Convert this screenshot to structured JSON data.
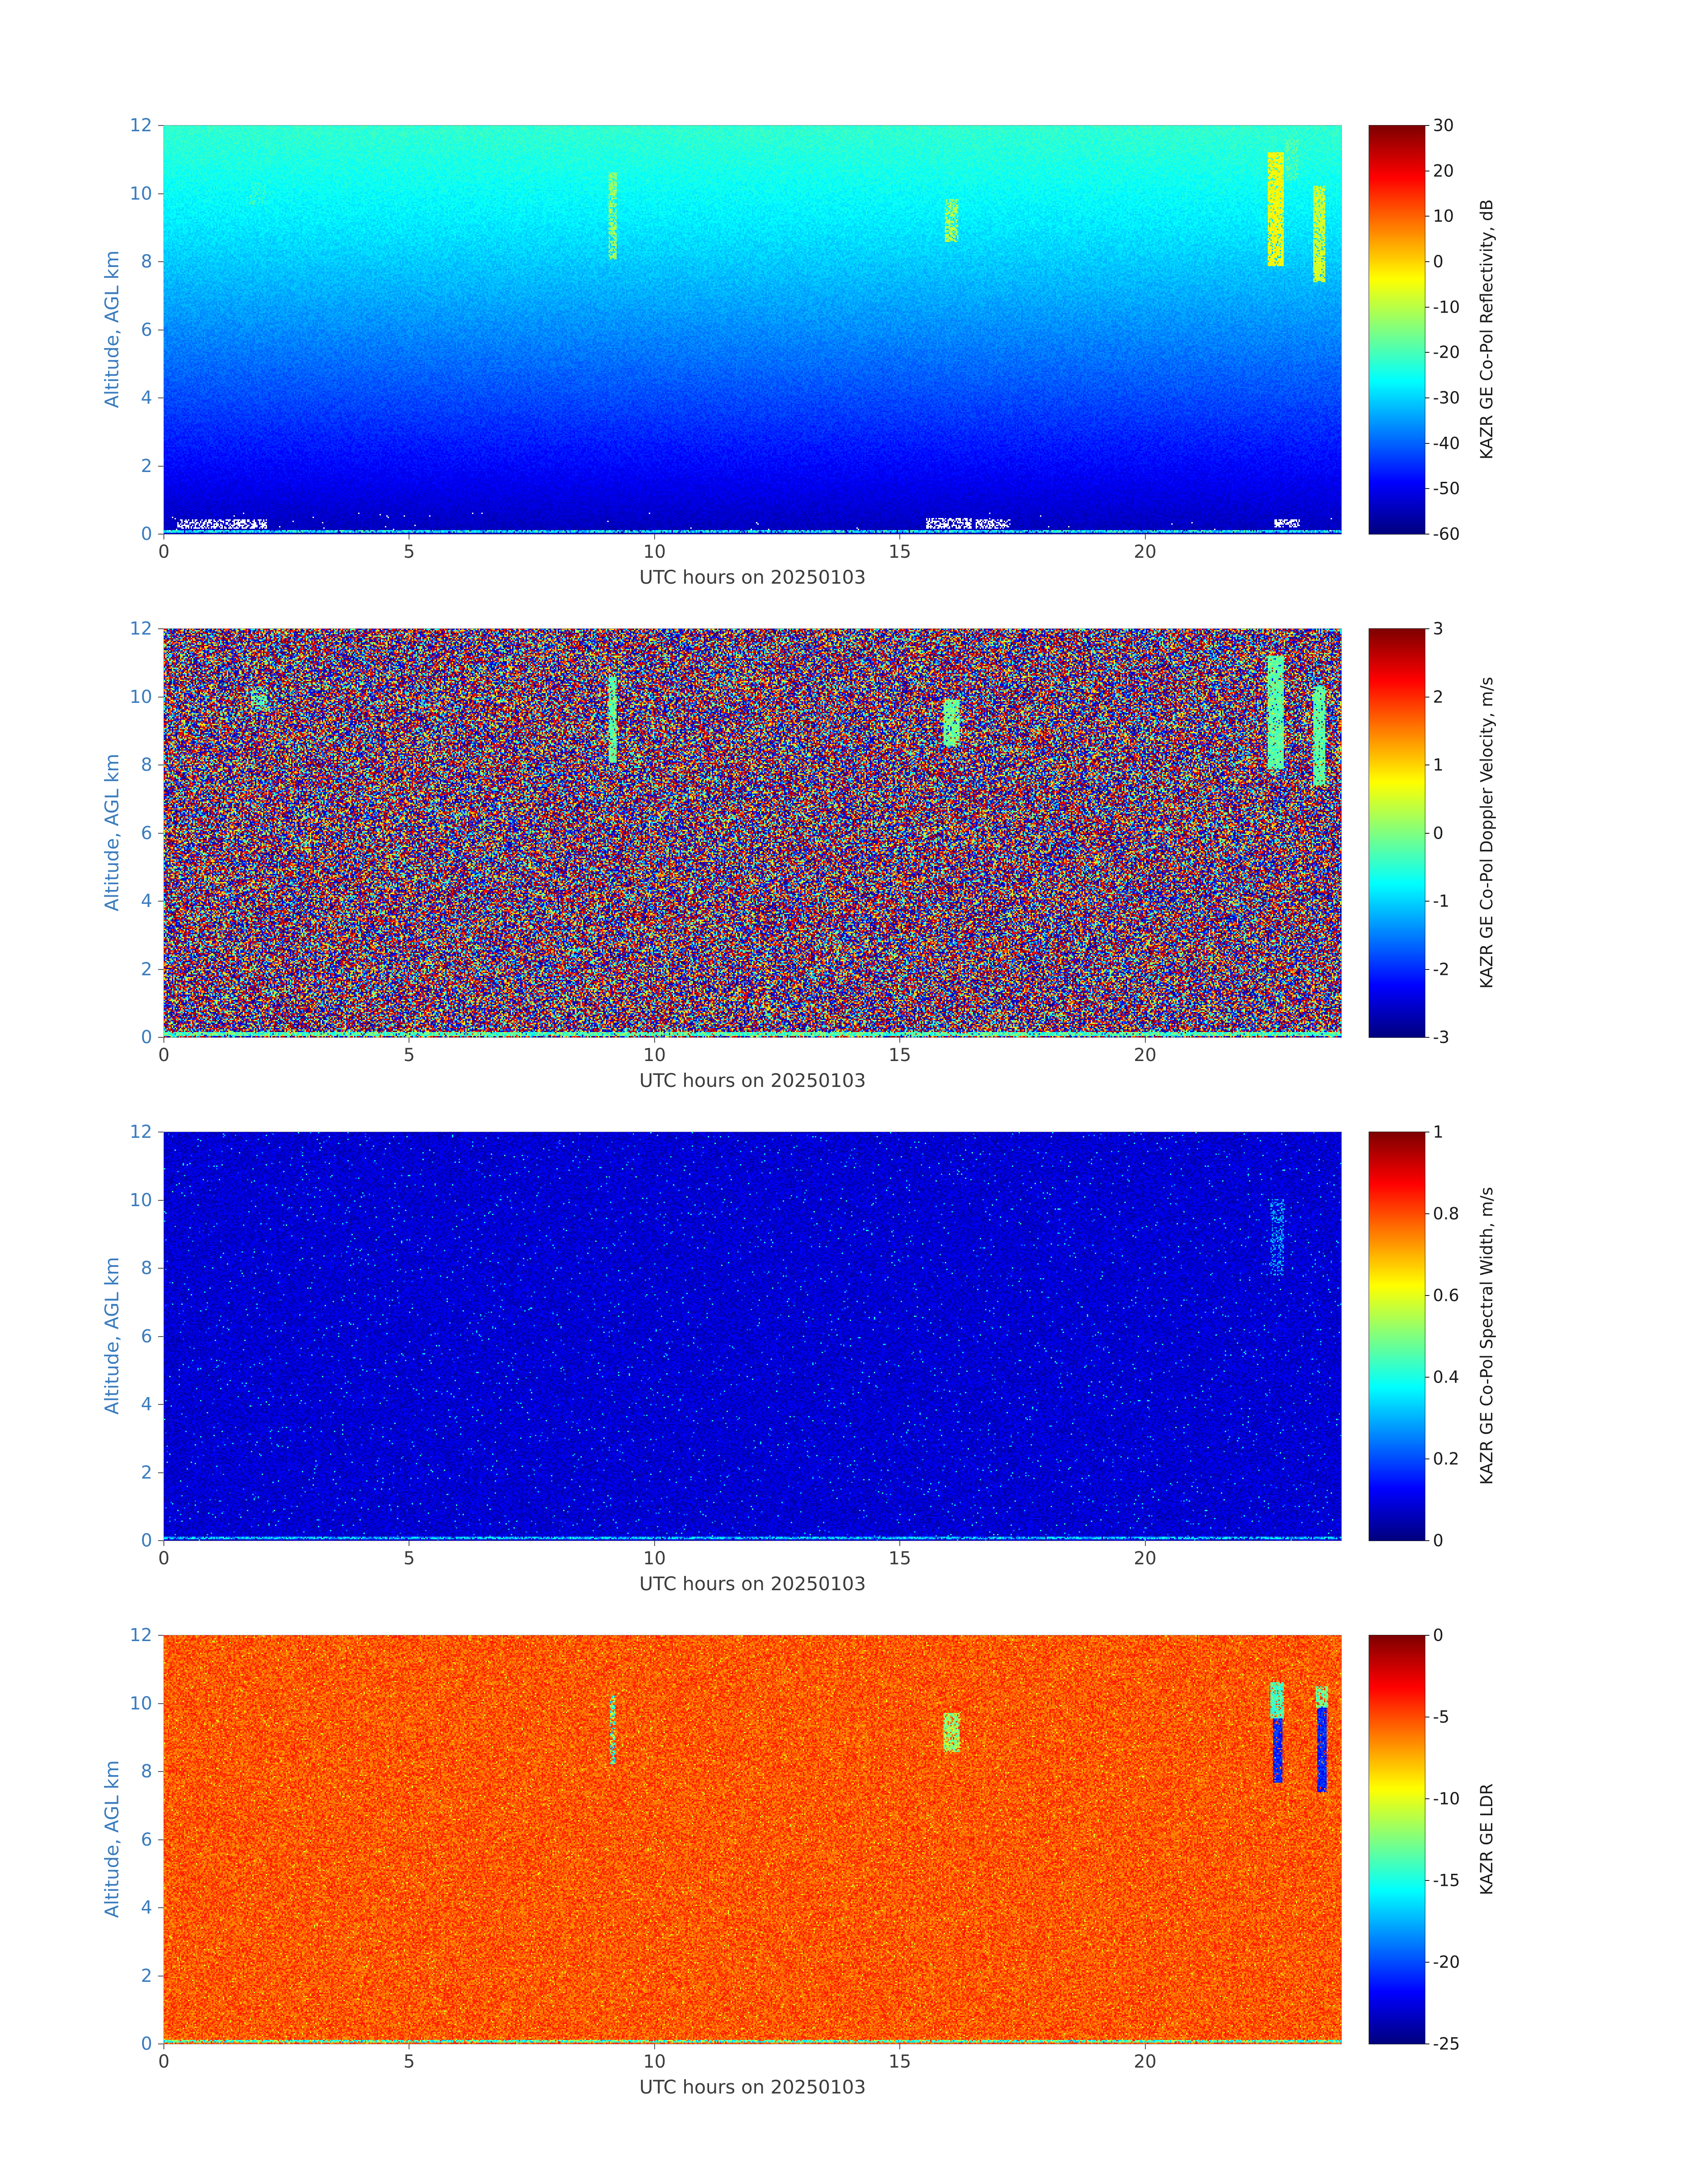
{
  "style": {
    "background": "#ffffff",
    "y_axis_color": "#3A7CBE",
    "x_axis_color": "#3C3C3C",
    "colorbar_text_color": "#1A1A1A",
    "frame_color": "#999999",
    "tick_color": "#555555"
  },
  "chart_data": [
    {
      "panel": "reflectivity",
      "type": "heatmap",
      "colormap": "jet",
      "xlabel": "UTC hours on 20250103",
      "ylabel": "Altitude, AGL km",
      "colorbar_label": "KAZR GE Co-Pol Reflectivity, dB",
      "xlim": [
        0,
        24
      ],
      "ylim": [
        0,
        12
      ],
      "xticks": [
        0,
        5,
        10,
        15,
        20
      ],
      "yticks": [
        0,
        2,
        4,
        6,
        8,
        10,
        12
      ],
      "clim": [
        -60,
        30
      ],
      "colorbar_ticks": [
        30,
        20,
        10,
        0,
        -10,
        -20,
        -30,
        -40,
        -50,
        -60
      ],
      "field": {
        "kind": "vgradient",
        "top_value": -22,
        "bottom_value": -55,
        "gamma": 1.2,
        "noise": 5,
        "seed": 11
      },
      "bottom_line": {
        "value": -28,
        "jitter": 22,
        "rows": 2
      },
      "clutter": {
        "prob": 0.003,
        "alt_max": 0.6,
        "seed": 12,
        "blobs": [
          {
            "x": 1.2,
            "alt": 0.3,
            "w": 1.8,
            "h": 0.22
          },
          {
            "x": 16.0,
            "alt": 0.32,
            "w": 0.9,
            "h": 0.28
          },
          {
            "x": 16.9,
            "alt": 0.3,
            "w": 0.7,
            "h": 0.22
          },
          {
            "x": 22.9,
            "alt": 0.33,
            "w": 0.5,
            "h": 0.2
          }
        ]
      },
      "features": [
        {
          "x": 9.15,
          "alt_lo": 8.1,
          "alt_hi": 10.6,
          "w": 0.12,
          "value": -12,
          "jitter": 8,
          "density": 0.7
        },
        {
          "x": 16.05,
          "alt_lo": 8.6,
          "alt_hi": 9.8,
          "w": 0.25,
          "value": -10,
          "jitter": 8,
          "density": 0.6
        },
        {
          "x": 1.9,
          "alt_lo": 9.7,
          "alt_hi": 10.3,
          "w": 0.3,
          "value": -20,
          "jitter": 6,
          "density": 0.3
        },
        {
          "x": 22.65,
          "alt_lo": 7.9,
          "alt_hi": 11.2,
          "w": 0.3,
          "value": -4,
          "jitter": 6,
          "density": 0.85
        },
        {
          "x": 23.55,
          "alt_lo": 7.4,
          "alt_hi": 10.2,
          "w": 0.22,
          "value": -8,
          "jitter": 6,
          "density": 0.85
        },
        {
          "x": 23.0,
          "alt_lo": 10.4,
          "alt_hi": 11.6,
          "w": 0.25,
          "value": -18,
          "jitter": 6,
          "density": 0.45
        }
      ]
    },
    {
      "panel": "doppler_velocity",
      "type": "heatmap",
      "colormap": "jet",
      "xlabel": "UTC hours on 20250103",
      "ylabel": "Altitude, AGL km",
      "colorbar_label": "KAZR GE Co-Pol Doppler Velocity, m/s",
      "xlim": [
        0,
        24
      ],
      "ylim": [
        0,
        12
      ],
      "xticks": [
        0,
        5,
        10,
        15,
        20
      ],
      "yticks": [
        0,
        2,
        4,
        6,
        8,
        10,
        12
      ],
      "clim": [
        -3,
        3
      ],
      "colorbar_ticks": [
        3,
        2,
        1,
        0,
        -1,
        -2,
        -3
      ],
      "field": {
        "kind": "uniform",
        "min": -3,
        "max": 3,
        "extreme_bias": true,
        "seed": 21
      },
      "bottom_line": {
        "value": -0.3,
        "jitter": 1.4,
        "rows": 3
      },
      "features": [
        {
          "x": 9.15,
          "alt_lo": 8.1,
          "alt_hi": 10.6,
          "w": 0.12,
          "value": -0.2,
          "jitter": 0.8,
          "density": 0.85
        },
        {
          "x": 16.05,
          "alt_lo": 8.6,
          "alt_hi": 9.9,
          "w": 0.3,
          "value": -0.1,
          "jitter": 0.8,
          "density": 0.85
        },
        {
          "x": 1.95,
          "alt_lo": 9.6,
          "alt_hi": 10.3,
          "w": 0.3,
          "value": -0.2,
          "jitter": 0.8,
          "density": 0.5
        },
        {
          "x": 22.65,
          "alt_lo": 7.9,
          "alt_hi": 11.2,
          "w": 0.3,
          "value": -0.2,
          "jitter": 0.7,
          "density": 0.9
        },
        {
          "x": 23.55,
          "alt_lo": 7.4,
          "alt_hi": 10.3,
          "w": 0.22,
          "value": -0.2,
          "jitter": 0.7,
          "density": 0.9
        }
      ]
    },
    {
      "panel": "spectral_width",
      "type": "heatmap",
      "colormap": "jet",
      "xlabel": "UTC hours on 20250103",
      "ylabel": "Altitude, AGL km",
      "colorbar_label": "KAZR GE Co-Pol Spectral Width, m/s",
      "xlim": [
        0,
        24
      ],
      "ylim": [
        0,
        12
      ],
      "xticks": [
        0,
        5,
        10,
        15,
        20
      ],
      "yticks": [
        0,
        2,
        4,
        6,
        8,
        10,
        12
      ],
      "clim": [
        0,
        1
      ],
      "colorbar_ticks": [
        1,
        0.8,
        0.6,
        0.4,
        0.2,
        0
      ],
      "field": {
        "kind": "speckle",
        "base": 0.08,
        "noise": 0.1,
        "spike_prob": 0.02,
        "spike_mag": 0.35,
        "seed": 31
      },
      "bottom_line": {
        "value": 0.3,
        "jitter": 0.2,
        "rows": 2
      },
      "features": [
        {
          "x": 22.7,
          "alt_lo": 7.8,
          "alt_hi": 10.0,
          "w": 0.25,
          "value": 0.3,
          "jitter": 0.15,
          "density": 0.35
        }
      ]
    },
    {
      "panel": "ldr",
      "type": "heatmap",
      "colormap": "jet",
      "xlabel": "UTC hours on 20250103",
      "ylabel": "Altitude, AGL km",
      "colorbar_label": "KAZR GE LDR",
      "xlim": [
        0,
        24
      ],
      "ylim": [
        0,
        12
      ],
      "xticks": [
        0,
        5,
        10,
        15,
        20
      ],
      "yticks": [
        0,
        2,
        4,
        6,
        8,
        10,
        12
      ],
      "clim": [
        -25,
        0
      ],
      "colorbar_ticks": [
        0,
        -5,
        -10,
        -15,
        -20,
        -25
      ],
      "field": {
        "kind": "speckle",
        "base": -5.2,
        "noise": 3.5,
        "spike_prob": 0.03,
        "spike_mag": -6,
        "seed": 41
      },
      "bottom_line": {
        "value": -14,
        "jitter": 7,
        "rows": 2
      },
      "features": [
        {
          "x": 9.15,
          "alt_lo": 8.2,
          "alt_hi": 10.2,
          "w": 0.1,
          "value": -13,
          "jitter": 10,
          "density": 0.6
        },
        {
          "x": 16.05,
          "alt_lo": 8.6,
          "alt_hi": 9.7,
          "w": 0.3,
          "value": -12,
          "jitter": 4,
          "density": 0.8
        },
        {
          "x": 22.7,
          "alt_lo": 7.7,
          "alt_hi": 9.6,
          "w": 0.18,
          "value": -21,
          "jitter": 3,
          "density": 0.9
        },
        {
          "x": 22.7,
          "alt_lo": 9.6,
          "alt_hi": 10.6,
          "w": 0.25,
          "value": -14,
          "jitter": 3,
          "density": 0.9
        },
        {
          "x": 23.6,
          "alt_lo": 7.4,
          "alt_hi": 9.9,
          "w": 0.15,
          "value": -21,
          "jitter": 3,
          "density": 0.9
        },
        {
          "x": 23.6,
          "alt_lo": 9.9,
          "alt_hi": 10.5,
          "w": 0.2,
          "value": -13,
          "jitter": 4,
          "density": 0.8
        }
      ]
    }
  ]
}
